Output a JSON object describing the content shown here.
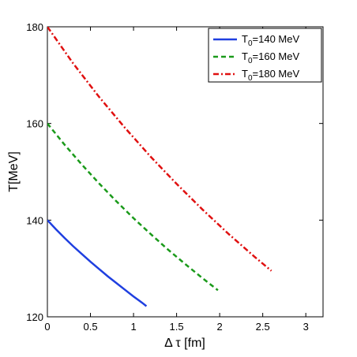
{
  "chart_data": {
    "type": "line",
    "xlabel": "Δ τ [fm]",
    "ylabel": "T[MeV]",
    "xlim": [
      0,
      3.2
    ],
    "ylim": [
      120,
      180
    ],
    "xticks": [
      0,
      0.5,
      1,
      1.5,
      2,
      2.5,
      3
    ],
    "xtick_labels": [
      "0",
      "0.5",
      "1",
      "1.5",
      "2",
      "2.5",
      "3"
    ],
    "yticks": [
      120,
      140,
      160,
      180
    ],
    "ytick_labels": [
      "120",
      "140",
      "160",
      "180"
    ],
    "grid": false,
    "legend_position": "top-right",
    "series": [
      {
        "name": "T0=140 MeV",
        "label_main": "T",
        "label_sub": "0",
        "label_rest": "=140 MeV",
        "color": "#1f3fe0",
        "style": "solid",
        "x": [
          0,
          0.1,
          0.2,
          0.3,
          0.4,
          0.5,
          0.6,
          0.7,
          0.8,
          0.9,
          1.0,
          1.1,
          1.15
        ],
        "y": [
          140.0,
          138.1,
          136.3,
          134.6,
          133.0,
          131.4,
          129.9,
          128.4,
          127.0,
          125.6,
          124.2,
          122.9,
          122.2
        ]
      },
      {
        "name": "T0=160 MeV",
        "label_main": "T",
        "label_sub": "0",
        "label_rest": "=160 MeV",
        "color": "#1a9a1a",
        "style": "dashed",
        "x": [
          0,
          0.2,
          0.4,
          0.6,
          0.8,
          1.0,
          1.2,
          1.4,
          1.6,
          1.8,
          1.98
        ],
        "y": [
          160.0,
          155.6,
          151.5,
          147.6,
          143.9,
          140.4,
          137.1,
          133.9,
          130.9,
          128.0,
          125.5
        ]
      },
      {
        "name": "T0=180 MeV",
        "label_main": "T",
        "label_sub": "0",
        "label_rest": "=180 MeV",
        "color": "#e01010",
        "style": "dashdot",
        "x": [
          0,
          0.3,
          0.6,
          0.9,
          1.2,
          1.5,
          1.8,
          2.1,
          2.4,
          2.6
        ],
        "y": [
          180.0,
          172.4,
          165.5,
          159.1,
          153.1,
          147.5,
          142.2,
          137.2,
          132.5,
          129.5
        ]
      }
    ]
  }
}
